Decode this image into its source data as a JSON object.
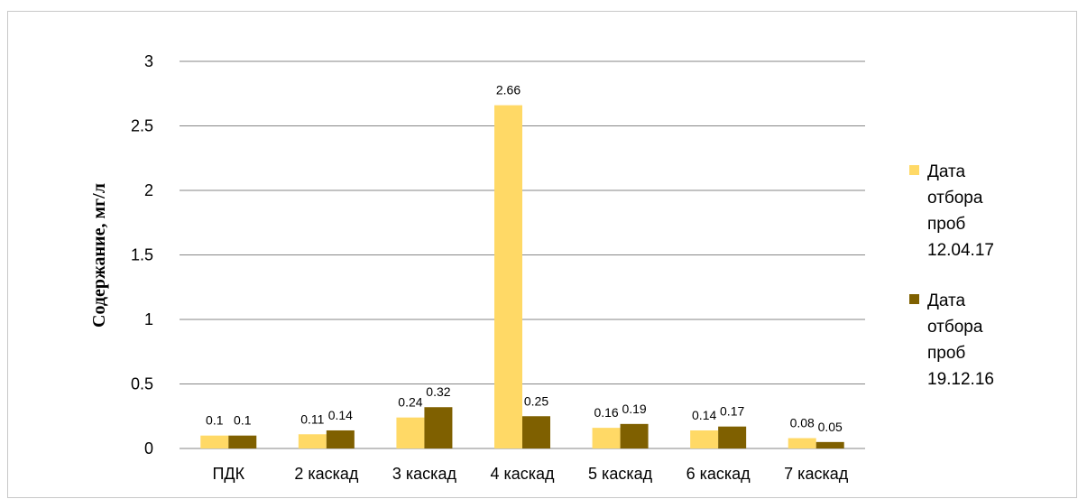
{
  "chart_data": {
    "type": "bar",
    "categories": [
      "ПДК",
      "2 каскад",
      "3 каскад",
      "4 каскад",
      "5 каскад",
      "6 каскад",
      "7 каскад"
    ],
    "series": [
      {
        "name": "Дата отбора проб 12.04.17",
        "name_lines": [
          "Дата",
          "отбора",
          "проб",
          "12.04.17"
        ],
        "color": "#FFD966",
        "values": [
          0.1,
          0.11,
          0.24,
          2.66,
          0.16,
          0.14,
          0.08
        ],
        "labels": [
          "0.1",
          "0.11",
          "0.24",
          "2.66",
          "0.16",
          "0.14",
          "0.08"
        ]
      },
      {
        "name": "Дата отбора проб 19.12.16",
        "name_lines": [
          "Дата",
          "отбора",
          "проб",
          "19.12.16"
        ],
        "color": "#7F6000",
        "values": [
          0.1,
          0.14,
          0.32,
          0.25,
          0.19,
          0.17,
          0.05
        ],
        "labels": [
          "0.1",
          "0.14",
          "0.32",
          "0.25",
          "0.19",
          "0.17",
          "0.05"
        ]
      }
    ],
    "title": "",
    "xlabel": "",
    "ylabel": "Содержание, мг/л",
    "ylim": [
      0,
      3
    ],
    "yticks": [
      "0",
      "0.5",
      "1",
      "1.5",
      "2",
      "2.5",
      "3"
    ],
    "ytick_values": [
      0,
      0.5,
      1,
      1.5,
      2,
      2.5,
      3
    ],
    "grid": true,
    "legend_position": "right"
  }
}
